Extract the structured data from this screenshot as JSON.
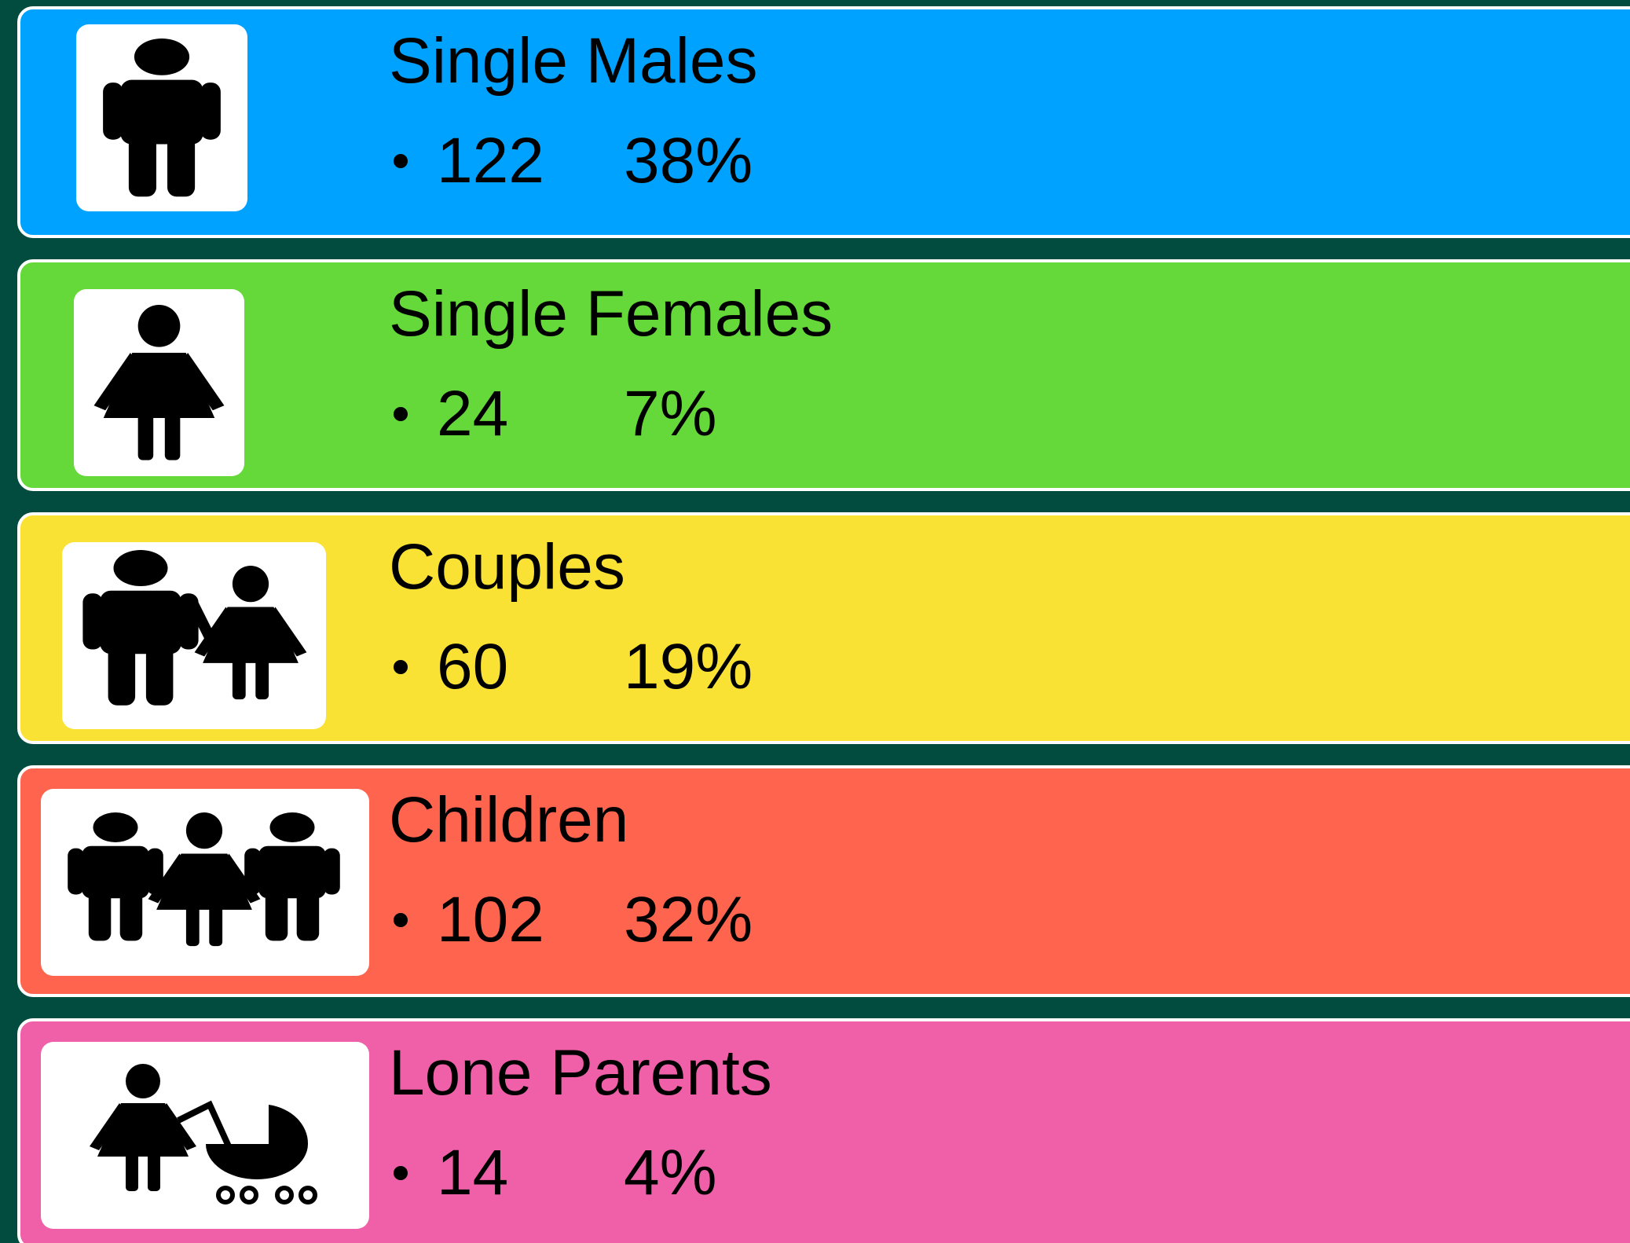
{
  "items": [
    {
      "label": "Single Males",
      "count": "122",
      "percent": "38%",
      "color": "#00a2ff"
    },
    {
      "label": "Single Females",
      "count": "24",
      "percent": "7%",
      "color": "#66d93a"
    },
    {
      "label": "Couples",
      "count": "60",
      "percent": "19%",
      "color": "#f9e234"
    },
    {
      "label": "Children",
      "count": "102",
      "percent": "32%",
      "color": "#ff654e"
    },
    {
      "label": "Lone Parents",
      "count": "14",
      "percent": "4%",
      "color": "#ef60a8"
    }
  ]
}
